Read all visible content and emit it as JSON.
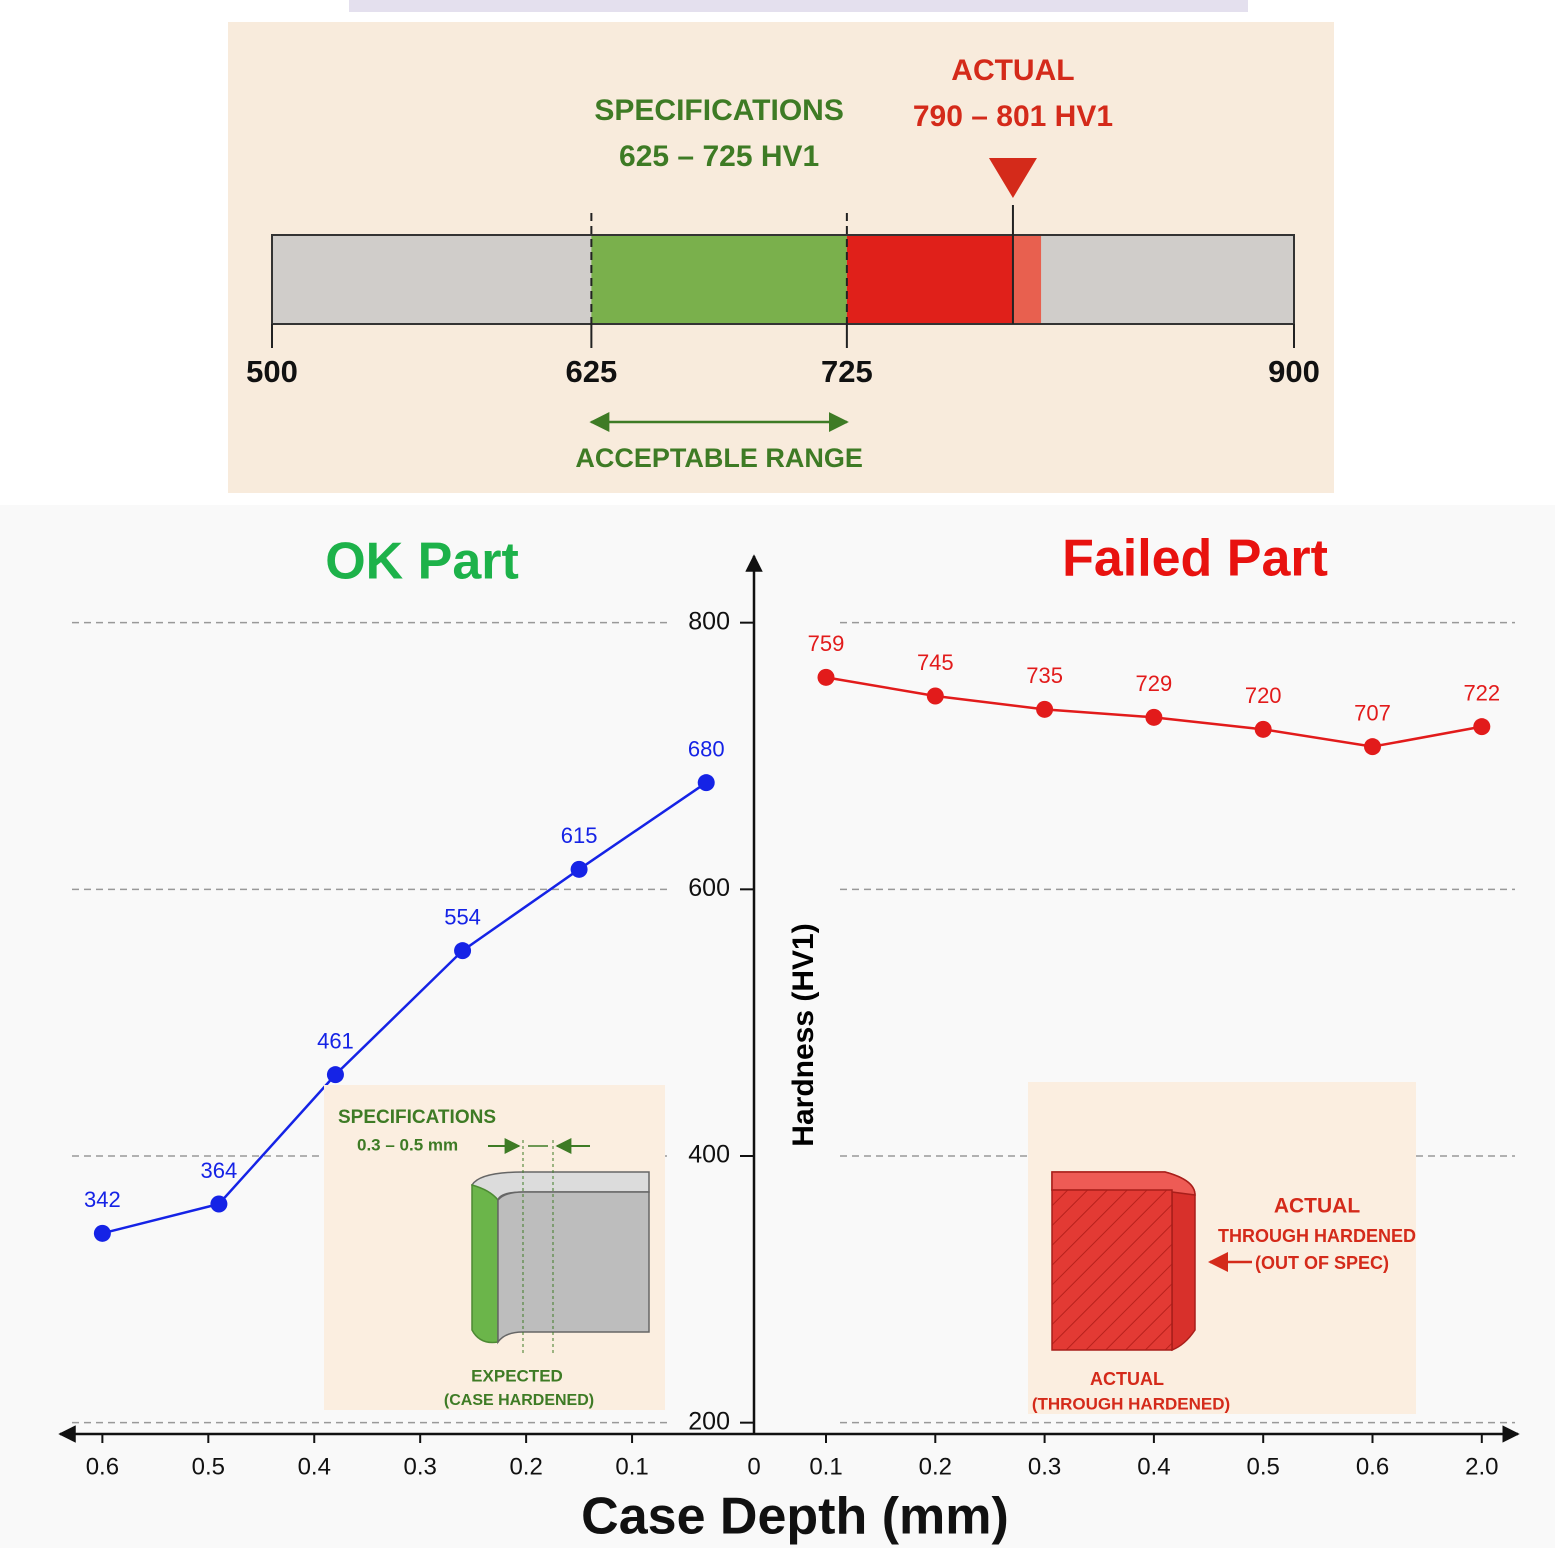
{
  "chart_data": [
    {
      "type": "range",
      "spec_label": [
        "SPECIFICATIONS",
        "625 – 725 HV1"
      ],
      "actual_label": [
        "ACTUAL",
        "790 – 801 HV1"
      ],
      "range_label": "ACCEPTABLE RANGE",
      "spec_range": [
        625,
        725
      ],
      "actual_range": [
        790,
        801
      ],
      "xlim": [
        500,
        900
      ],
      "xticks": [
        500,
        625,
        725,
        900
      ],
      "colors": {
        "outside": "#d0cdca",
        "spec": "#7ab04c",
        "over": "#e0201a",
        "actual": "#e8604f",
        "spec_text": "#3e7b25",
        "actual_text": "#d42a1a"
      }
    },
    {
      "type": "line",
      "title": "OK Part",
      "title_color": "#1db24a",
      "x": [
        0.6,
        0.49,
        0.38,
        0.26,
        0.15,
        0.03
      ],
      "values": [
        342,
        364,
        461,
        554,
        615,
        680
      ],
      "color": "#1523e6",
      "xlim": [
        0.64,
        0
      ],
      "xticks": [
        0.6,
        0.5,
        0.4,
        0.3,
        0.2,
        0.1
      ],
      "ylim": [
        190,
        850
      ],
      "yticks": [
        200,
        400,
        600,
        800
      ],
      "grid": true,
      "y_label": "Hardness (HV1)",
      "x_label": "Case Depth (mm)",
      "annotations": [
        "SPECIFICATIONS",
        "0.3 – 0.5 mm",
        "EXPECTED",
        "(CASE HARDENED)"
      ]
    },
    {
      "type": "line",
      "title": "Failed Part",
      "title_color": "#e8120f",
      "categories": [
        "0",
        "0.1",
        "0.2",
        "0.3",
        "0.4",
        "0.5",
        "0.6",
        "2.0"
      ],
      "values": [
        null,
        759,
        745,
        735,
        729,
        720,
        707,
        722
      ],
      "color": "#e21b1b",
      "ylim": [
        190,
        850
      ],
      "annotations": [
        "ACTUAL",
        "THROUGH HARDENED",
        "(OUT OF SPEC)",
        "ACTUAL",
        "(THROUGH HARDENED)"
      ]
    }
  ]
}
